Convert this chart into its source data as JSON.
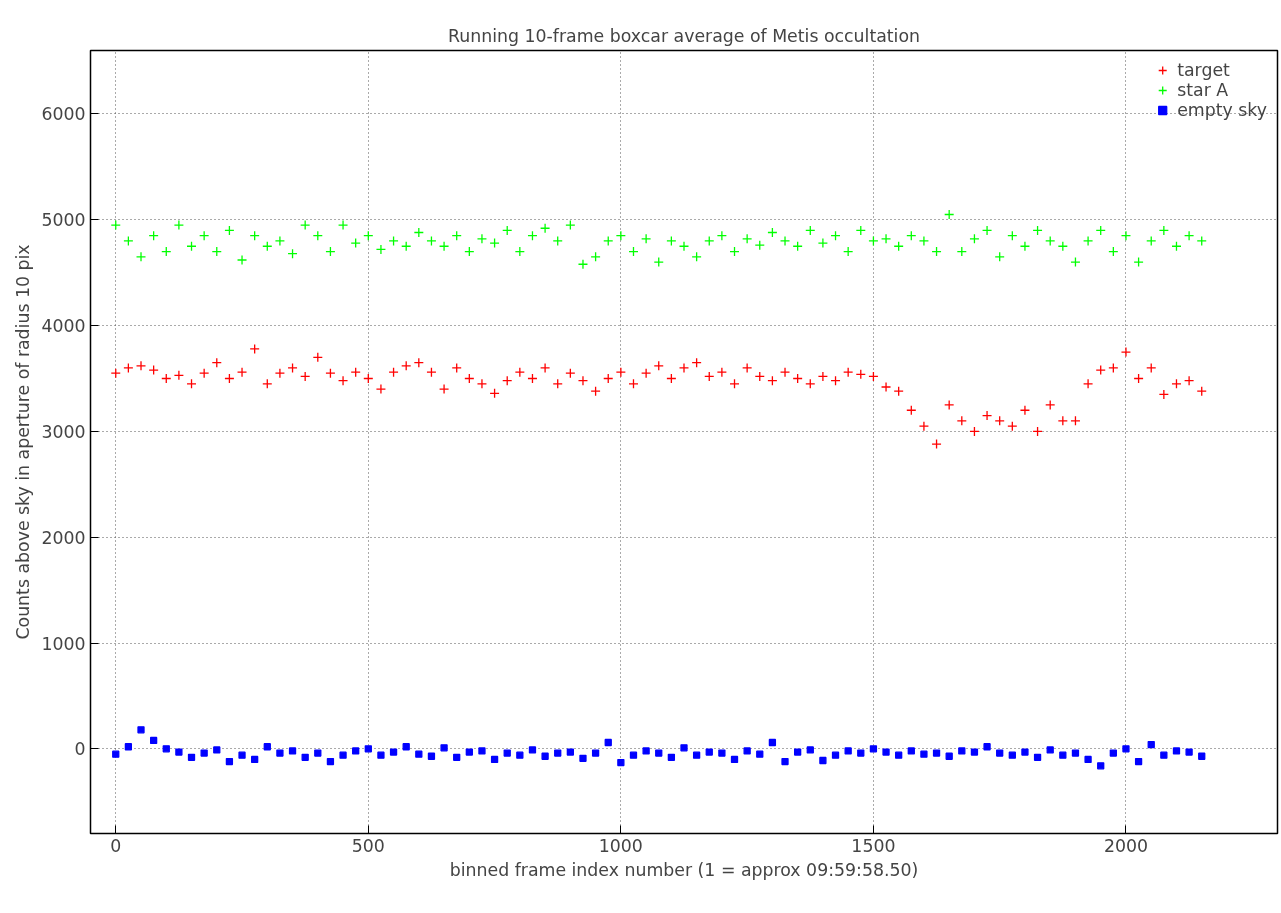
{
  "chart_data": {
    "type": "scatter",
    "title": "Running 10-frame boxcar average of Metis occultation",
    "xlabel": "binned frame index number (1 = approx 09:59:58.50)",
    "ylabel": "Counts above sky in aperture of radius 10 pix",
    "x": [
      0,
      25,
      50,
      75,
      100,
      125,
      150,
      175,
      200,
      225,
      250,
      275,
      300,
      325,
      350,
      375,
      400,
      425,
      450,
      475,
      500,
      525,
      550,
      575,
      600,
      625,
      650,
      675,
      700,
      725,
      750,
      775,
      800,
      825,
      850,
      875,
      900,
      925,
      950,
      975,
      1000,
      1025,
      1050,
      1075,
      1100,
      1125,
      1150,
      1175,
      1200,
      1225,
      1250,
      1275,
      1300,
      1325,
      1350,
      1375,
      1400,
      1425,
      1450,
      1475,
      1500,
      1525,
      1550,
      1575,
      1600,
      1625,
      1650,
      1675,
      1700,
      1725,
      1750,
      1775,
      1800,
      1825,
      1850,
      1875,
      1900,
      1925,
      1950,
      1975,
      2000,
      2025,
      2050,
      2075,
      2100,
      2125,
      2150
    ],
    "series": [
      {
        "name": "target",
        "color": "#ff0000",
        "marker": "cross",
        "values": [
          3550,
          3600,
          3620,
          3580,
          3500,
          3530,
          3450,
          3550,
          3650,
          3500,
          3560,
          3780,
          3450,
          3550,
          3600,
          3520,
          3700,
          3550,
          3480,
          3560,
          3500,
          3400,
          3560,
          3620,
          3650,
          3560,
          3400,
          3600,
          3500,
          3450,
          3360,
          3480,
          3560,
          3500,
          3600,
          3450,
          3550,
          3480,
          3380,
          3500,
          3560,
          3450,
          3550,
          3620,
          3500,
          3600,
          3650,
          3520,
          3560,
          3450,
          3600,
          3520,
          3480,
          3560,
          3500,
          3450,
          3520,
          3480,
          3560,
          3540,
          3520,
          3420,
          3380,
          3200,
          3050,
          2880,
          3250,
          3100,
          3000,
          3150,
          3100,
          3050,
          3200,
          3000,
          3250,
          3100,
          3100,
          3450,
          3580,
          3600,
          3750,
          3500,
          3600,
          3350,
          3450,
          3480,
          3380
        ]
      },
      {
        "name": "star A",
        "color": "#00ff00",
        "marker": "cross",
        "values": [
          4950,
          4800,
          4650,
          4850,
          4700,
          4950,
          4750,
          4850,
          4700,
          4900,
          4620,
          4850,
          4750,
          4800,
          4680,
          4950,
          4850,
          4700,
          4950,
          4780,
          4850,
          4720,
          4800,
          4750,
          4880,
          4800,
          4750,
          4850,
          4700,
          4820,
          4780,
          4900,
          4700,
          4850,
          4920,
          4800,
          4950,
          4580,
          4650,
          4800,
          4850,
          4700,
          4820,
          4600,
          4800,
          4750,
          4650,
          4800,
          4850,
          4700,
          4820,
          4760,
          4880,
          4800,
          4750,
          4900,
          4780,
          4850,
          4700,
          4900,
          4800,
          4820,
          4750,
          4850,
          4800,
          4700,
          5050,
          4700,
          4820,
          4900,
          4650,
          4850,
          4750,
          4900,
          4800,
          4750,
          4600,
          4800,
          4900,
          4700,
          4850,
          4600,
          4800,
          4900,
          4750,
          4850,
          4800
        ]
      },
      {
        "name": "empty sky",
        "color": "#0000ff",
        "marker": "square",
        "values": [
          -50,
          20,
          180,
          80,
          0,
          -30,
          -80,
          -40,
          -10,
          -120,
          -60,
          -100,
          20,
          -40,
          -20,
          -80,
          -40,
          -120,
          -60,
          -20,
          0,
          -60,
          -30,
          20,
          -50,
          -70,
          10,
          -80,
          -30,
          -20,
          -100,
          -40,
          -60,
          -10,
          -70,
          -40,
          -30,
          -90,
          -40,
          60,
          -130,
          -60,
          -20,
          -40,
          -80,
          10,
          -60,
          -30,
          -40,
          -100,
          -20,
          -50,
          60,
          -120,
          -30,
          -10,
          -110,
          -60,
          -20,
          -40,
          0,
          -30,
          -60,
          -20,
          -50,
          -40,
          -70,
          -20,
          -30,
          20,
          -40,
          -60,
          -30,
          -80,
          -10,
          -60,
          -40,
          -100,
          -160,
          -40,
          0,
          -120,
          40,
          -60,
          -20,
          -30,
          -70
        ]
      }
    ],
    "xlim": [
      -50,
      2300
    ],
    "ylim": [
      -800,
      6600
    ],
    "xticks": [
      0,
      500,
      1000,
      1500,
      2000
    ],
    "yticks": [
      0,
      1000,
      2000,
      3000,
      4000,
      5000,
      6000
    ],
    "grid": true,
    "legend": "top right"
  }
}
